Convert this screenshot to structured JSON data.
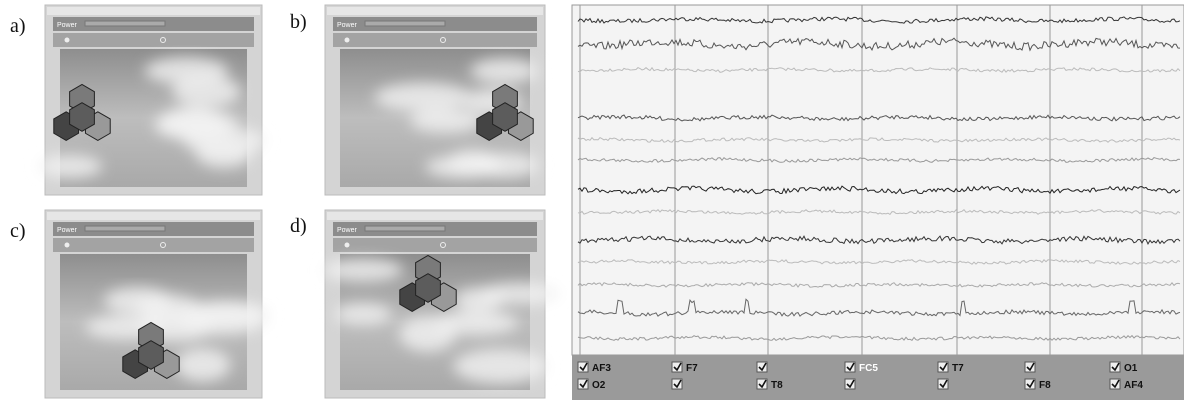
{
  "panels": [
    {
      "label": "a)",
      "power_label": "Power"
    },
    {
      "label": "b)",
      "power_label": "Power"
    },
    {
      "label": "c)",
      "power_label": "Power"
    },
    {
      "label": "d)",
      "power_label": "Power"
    }
  ],
  "eeg": {
    "row1": [
      "AF3",
      "F7",
      "FC5",
      "T7",
      "O1"
    ],
    "row2": [
      "O2",
      "T8",
      "F8",
      "AF4"
    ]
  }
}
